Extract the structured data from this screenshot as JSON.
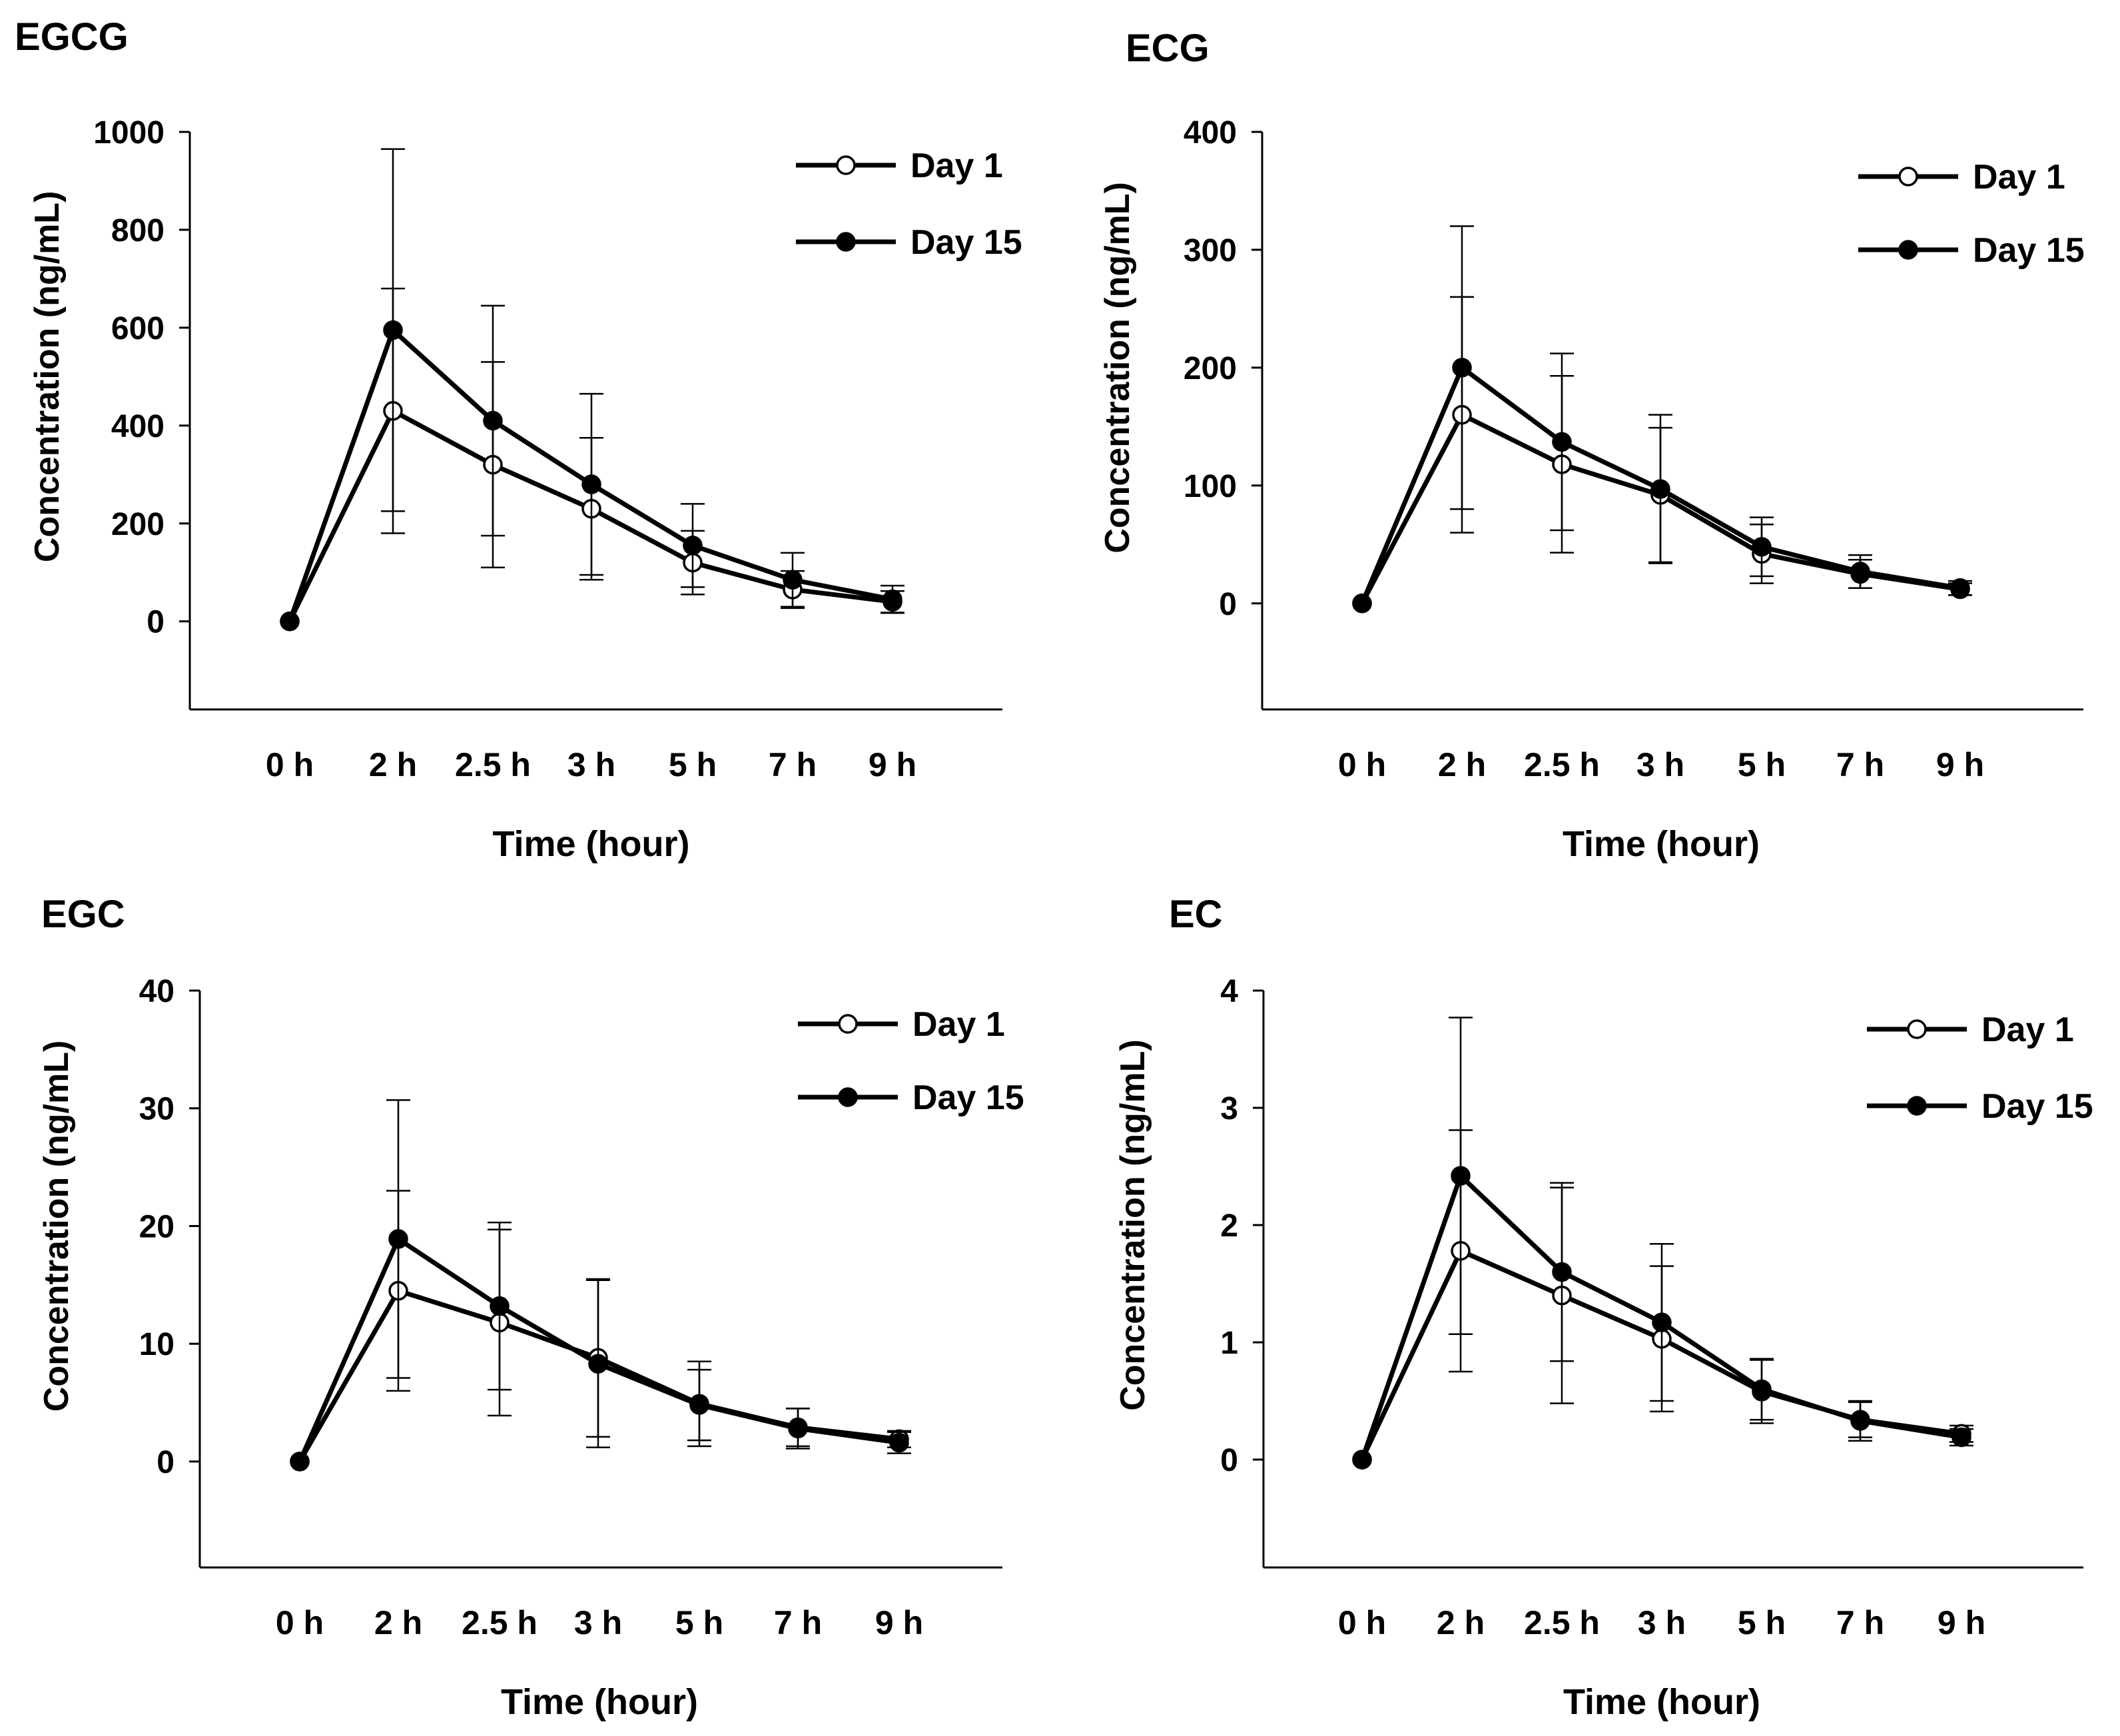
{
  "figure": {
    "panel_count": 4,
    "colors": {
      "line": "#000000",
      "open_marker_fill": "#ffffff",
      "filled_marker_fill": "#000000",
      "background": "#ffffff"
    }
  },
  "chart_data": [
    {
      "type": "line",
      "title": "EGCG",
      "xlabel": "Time (hour)",
      "ylabel": "Concentration (ng/mL)",
      "categories": [
        "0 h",
        "2 h",
        "2.5 h",
        "3 h",
        "5 h",
        "7 h",
        "9 h"
      ],
      "ylim": [
        -180,
        1000
      ],
      "yticks": [
        0,
        200,
        400,
        600,
        800,
        1000
      ],
      "legend_position": "top-right",
      "series": [
        {
          "name": "Day 1",
          "marker": "open-circle",
          "values": [
            0,
            430,
            320,
            230,
            120,
            65,
            40
          ],
          "errors": [
            0,
            250,
            210,
            145,
            65,
            38,
            22
          ]
        },
        {
          "name": "Day 15",
          "marker": "filled-circle",
          "values": [
            0,
            595,
            410,
            280,
            155,
            85,
            45
          ],
          "errors": [
            0,
            370,
            235,
            185,
            85,
            55,
            28
          ]
        }
      ]
    },
    {
      "type": "line",
      "title": "ECG",
      "xlabel": "Time (hour)",
      "ylabel": "Concentration (ng/mL)",
      "categories": [
        "0 h",
        "2 h",
        "2.5 h",
        "3 h",
        "5 h",
        "7 h",
        "9 h"
      ],
      "ylim": [
        -90,
        400
      ],
      "yticks": [
        0,
        100,
        200,
        300,
        400
      ],
      "legend_position": "top-right",
      "series": [
        {
          "name": "Day 1",
          "marker": "open-circle",
          "values": [
            0,
            160,
            118,
            92,
            42,
            25,
            12
          ],
          "errors": [
            0,
            100,
            75,
            57,
            25,
            12,
            5
          ]
        },
        {
          "name": "Day 15",
          "marker": "filled-circle",
          "values": [
            0,
            200,
            137,
            97,
            48,
            27,
            13
          ],
          "errors": [
            0,
            120,
            75,
            63,
            25,
            14,
            6
          ]
        }
      ]
    },
    {
      "type": "line",
      "title": "EGC",
      "xlabel": "Time (hour)",
      "ylabel": "Concentration (ng/mL)",
      "categories": [
        "0 h",
        "2 h",
        "2.5 h",
        "3 h",
        "5 h",
        "7 h",
        "9 h"
      ],
      "ylim": [
        -9,
        40
      ],
      "yticks": [
        0,
        10,
        20,
        30,
        40
      ],
      "legend_position": "top-right",
      "series": [
        {
          "name": "Day 1",
          "marker": "open-circle",
          "values": [
            0,
            14.5,
            11.8,
            8.8,
            4.9,
            2.9,
            1.9
          ],
          "errors": [
            0,
            8.5,
            7.9,
            6.7,
            3.6,
            1.6,
            0.7
          ]
        },
        {
          "name": "Day 15",
          "marker": "filled-circle",
          "values": [
            0,
            18.9,
            13.2,
            8.3,
            4.8,
            2.8,
            1.6
          ],
          "errors": [
            0,
            11.8,
            7.1,
            7.1,
            3.0,
            1.7,
            0.9
          ]
        }
      ]
    },
    {
      "type": "line",
      "title": "EC",
      "xlabel": "Time (hour)",
      "ylabel": "Concentration (ng/mL)",
      "categories": [
        "0 h",
        "2 h",
        "2.5 h",
        "3 h",
        "5 h",
        "7 h",
        "9 h"
      ],
      "ylim": [
        -0.92,
        4
      ],
      "yticks": [
        0,
        1,
        2,
        3,
        4
      ],
      "legend_position": "top-right",
      "series": [
        {
          "name": "Day 1",
          "marker": "open-circle",
          "values": [
            0,
            1.78,
            1.4,
            1.03,
            0.58,
            0.34,
            0.22
          ],
          "errors": [
            0,
            1.03,
            0.92,
            0.62,
            0.27,
            0.15,
            0.07
          ]
        },
        {
          "name": "Day 15",
          "marker": "filled-circle",
          "values": [
            0,
            2.42,
            1.6,
            1.17,
            0.6,
            0.33,
            0.19
          ],
          "errors": [
            0,
            1.35,
            0.76,
            0.67,
            0.26,
            0.17,
            0.07
          ]
        }
      ]
    }
  ]
}
